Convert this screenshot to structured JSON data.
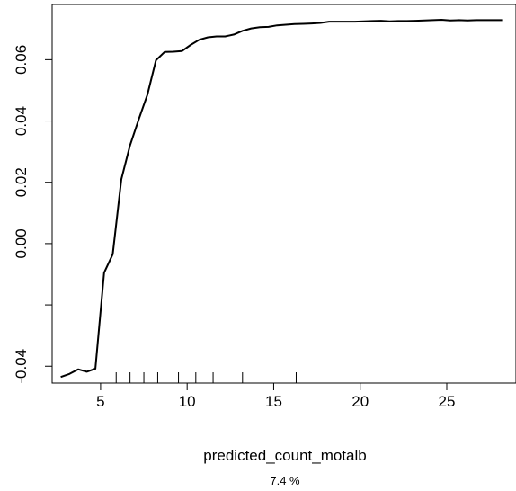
{
  "chart_data": {
    "type": "line",
    "title": "",
    "xlabel": "predicted_count_motalb",
    "caption": "7.4 %",
    "ylabel": "",
    "xlim": [
      2.2,
      29
    ],
    "ylim": [
      -0.0455,
      0.078
    ],
    "x_ticks": [
      5,
      10,
      15,
      20,
      25
    ],
    "y_ticks": [
      -0.04,
      0.0,
      0.02,
      0.04,
      0.06
    ],
    "y_tick_labels": [
      "-0.04",
      "0.00",
      "0.02",
      "0.04",
      "0.06"
    ],
    "grid": false,
    "series": [
      {
        "x": [
          2.7,
          3.2,
          3.7,
          4.2,
          4.7,
          5.2,
          5.7,
          6.2,
          6.7,
          7.2,
          7.7,
          8.2,
          8.7,
          9.2,
          9.7,
          10.2,
          10.7,
          11.2,
          11.7,
          12.2,
          12.7,
          13.2,
          13.7,
          14.2,
          14.7,
          15.2,
          15.7,
          16.2,
          16.7,
          17.2,
          17.7,
          18.2,
          18.7,
          19.2,
          19.7,
          20.2,
          20.7,
          21.2,
          21.7,
          22.2,
          22.7,
          23.2,
          23.7,
          24.2,
          24.7,
          25.2,
          25.7,
          26.2,
          26.7,
          27.2,
          27.7,
          28.2
        ],
        "y": [
          -0.0435,
          -0.0425,
          -0.041,
          -0.0418,
          -0.0408,
          -0.0095,
          -0.0035,
          0.021,
          0.032,
          0.0405,
          0.0485,
          0.0598,
          0.0625,
          0.0626,
          0.0628,
          0.0648,
          0.0665,
          0.0673,
          0.0676,
          0.0676,
          0.0682,
          0.0694,
          0.0702,
          0.0706,
          0.0707,
          0.0712,
          0.0714,
          0.0716,
          0.0717,
          0.0718,
          0.072,
          0.0724,
          0.0724,
          0.0724,
          0.0724,
          0.0725,
          0.0726,
          0.0727,
          0.0725,
          0.0726,
          0.0726,
          0.0727,
          0.0728,
          0.0729,
          0.073,
          0.0728,
          0.0729,
          0.0728,
          0.0729,
          0.0729,
          0.0729,
          0.0729
        ]
      }
    ],
    "rug": [
      5.9,
      6.7,
      7.5,
      8.3,
      9.5,
      10.5,
      11.5,
      13.2,
      16.3
    ]
  }
}
